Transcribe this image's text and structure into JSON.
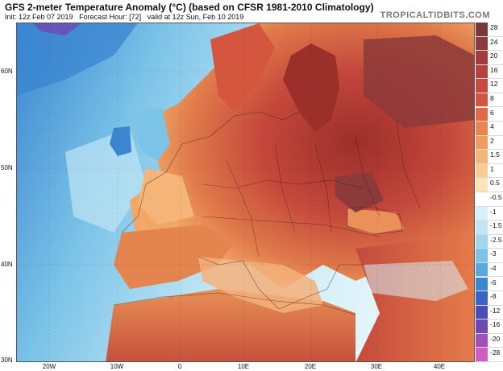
{
  "header": {
    "title": "GFS 2-meter Temperature Anomaly (°C) (based on CFSR 1981-2010 Climatology)",
    "init": "Init: 12z Feb 07 2019",
    "forecast_hour": "Forecast Hour: [72]",
    "valid": "valid at 12z Sun, Feb 10 2019",
    "brand": "TROPICALTIDBITS.COM"
  },
  "map": {
    "lat_labels": [
      "60N",
      "50N",
      "40N",
      "30N"
    ],
    "lon_labels": [
      "20W",
      "10W",
      "0",
      "10E",
      "20E",
      "30E",
      "40E"
    ]
  },
  "colorbar": {
    "levels": [
      "28",
      "24",
      "20",
      "16",
      "12",
      "8",
      "6",
      "4",
      "2",
      "1.5",
      "1",
      "0.5",
      "-0.5",
      "-1",
      "-1.5",
      "-2.5",
      "-3",
      "-4",
      "-6",
      "-8",
      "-12",
      "-16",
      "-20",
      "-28"
    ],
    "colors": [
      "#7a3838",
      "#8d3a3a",
      "#a63a3a",
      "#b8413e",
      "#c84a40",
      "#d4563f",
      "#e06a45",
      "#ea8450",
      "#f09c5f",
      "#f5b478",
      "#f9cc96",
      "#fce4b8",
      "#ffffff",
      "#d8f1f8",
      "#bfe6f3",
      "#9ed7ee",
      "#7cc3e8",
      "#57a8df",
      "#3a86d0",
      "#3865c2",
      "#4d4bb7",
      "#7048b3",
      "#a350b9",
      "#d25cc4"
    ]
  }
}
